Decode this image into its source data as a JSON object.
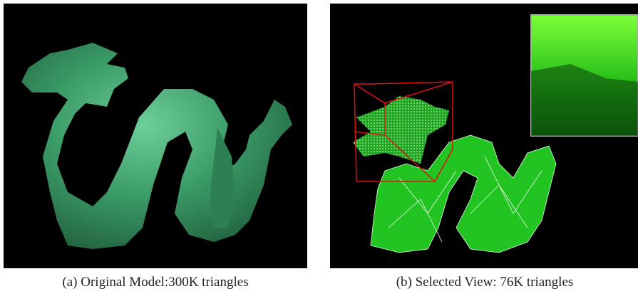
{
  "figure": {
    "panels": [
      {
        "caption": "(a) Original Model:300K triangles"
      },
      {
        "caption": "(b) Selected View: 76K triangles"
      }
    ]
  }
}
